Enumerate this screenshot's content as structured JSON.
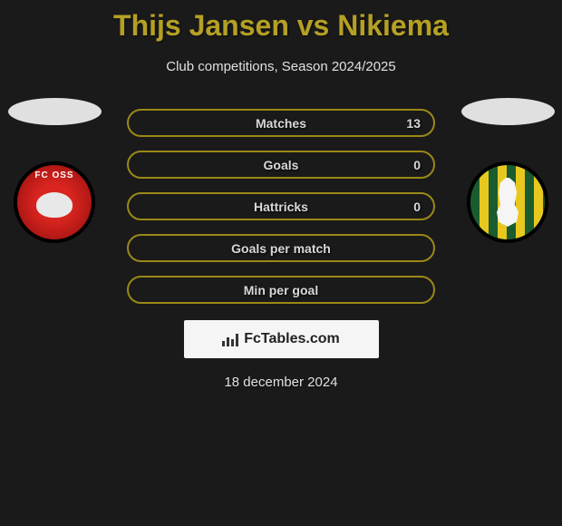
{
  "title": "Thijs Jansen vs Nikiema",
  "subtitle": "Club competitions, Season 2024/2025",
  "date": "18 december 2024",
  "brand": "FcTables.com",
  "colors": {
    "accent": "#b5a024",
    "pill_border": "#9a8817",
    "pill_fill": "#7d6f14",
    "background": "#1a1a1a",
    "text_light": "#e0e0e0"
  },
  "left_club": {
    "name": "FC Oss",
    "badge_text": "FC OSS"
  },
  "right_club": {
    "name": "ADO Den Haag"
  },
  "stats": [
    {
      "label": "Matches",
      "value": "13",
      "fill_pct": 100
    },
    {
      "label": "Goals",
      "value": "0",
      "fill_pct": 0
    },
    {
      "label": "Hattricks",
      "value": "0",
      "fill_pct": 0
    },
    {
      "label": "Goals per match",
      "value": "",
      "fill_pct": 0
    },
    {
      "label": "Min per goal",
      "value": "",
      "fill_pct": 0
    }
  ]
}
